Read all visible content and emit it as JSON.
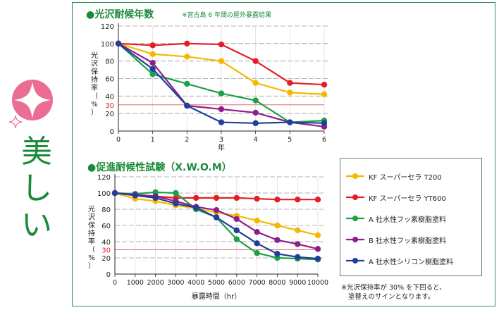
{
  "left": {
    "label": "美しい",
    "icon": "sparkle-icon"
  },
  "colors": {
    "title_green": "#1a8a3a",
    "frame_green": "#2f8f5c",
    "ref_line_red": "#e06a6a",
    "grid": "#9a9a9a"
  },
  "legend": [
    {
      "label": "KF スーパーセラ T200",
      "color": "#f5b800"
    },
    {
      "label": "KF スーパーセラ YT600",
      "color": "#e21f26"
    },
    {
      "label": "A 社水性フッ素樹脂塗料",
      "color": "#1ea049"
    },
    {
      "label": "B 社水性フッ素樹脂塗料",
      "color": "#8e1d8c"
    },
    {
      "label": "A 社水性シリコン樹脂塗料",
      "color": "#1f3f99"
    }
  ],
  "footnote": {
    "line1": "※光沢保持率が 30% を下回ると、",
    "line2": "塗替えのサインとなります。"
  },
  "chart_data": [
    {
      "type": "line",
      "title": "●光沢耐候年数",
      "note": "※宮古島 6 年間の屋外暴露結果",
      "xlabel": "年",
      "ylabel": "光沢保持率（%）",
      "xlim": [
        0,
        6
      ],
      "ylim": [
        0,
        120
      ],
      "x_ticks": [
        "0",
        "1",
        "2",
        "3",
        "4",
        "5",
        "6"
      ],
      "y_ticks": [
        "0",
        "20",
        "40",
        "60",
        "80",
        "100",
        "120"
      ],
      "reference_line": {
        "value": 30,
        "label": "30"
      },
      "grid": true,
      "x": [
        0,
        1,
        2,
        3,
        4,
        5,
        6
      ],
      "series": [
        {
          "name": "KF スーパーセラ T200",
          "color": "#f5b800",
          "values": [
            100,
            88,
            85,
            80,
            55,
            44,
            42
          ]
        },
        {
          "name": "KF スーパーセラ YT600",
          "color": "#e21f26",
          "values": [
            100,
            98,
            100,
            99,
            80,
            55,
            53
          ]
        },
        {
          "name": "A 社水性フッ素樹脂塗料",
          "color": "#1ea049",
          "values": [
            100,
            65,
            54,
            43,
            35,
            10,
            12
          ]
        },
        {
          "name": "B 社水性フッ素樹脂塗料",
          "color": "#8e1d8c",
          "values": [
            100,
            78,
            29,
            25,
            21,
            10,
            5
          ]
        },
        {
          "name": "A 社水性シリコン樹脂塗料",
          "color": "#1f3f99",
          "values": [
            100,
            71,
            29,
            10,
            9,
            10,
            9
          ]
        }
      ]
    },
    {
      "type": "line",
      "title": "●促進耐候性試験（X.W.O.M）",
      "xlabel": "暴露時間（hr）",
      "ylabel": "光沢保持率（%）",
      "xlim": [
        0,
        10000
      ],
      "ylim": [
        0,
        120
      ],
      "x_ticks": [
        "0",
        "1000",
        "2000",
        "3000",
        "4000",
        "5000",
        "6000",
        "7000",
        "8000",
        "9000",
        "10000"
      ],
      "y_ticks": [
        "0",
        "20",
        "40",
        "60",
        "80",
        "100",
        "120"
      ],
      "reference_line": {
        "value": 30,
        "label": "30"
      },
      "grid": true,
      "x": [
        0,
        1000,
        2000,
        3000,
        4000,
        5000,
        6000,
        7000,
        8000,
        9000,
        10000
      ],
      "series": [
        {
          "name": "KF スーパーセラ T200",
          "color": "#f5b800",
          "values": [
            100,
            93,
            90,
            85,
            81,
            76,
            72,
            66,
            60,
            54,
            48
          ]
        },
        {
          "name": "KF スーパーセラ YT600",
          "color": "#e21f26",
          "values": [
            100,
            98,
            96,
            94,
            94,
            94,
            94,
            93,
            92,
            92,
            92
          ]
        },
        {
          "name": "A 社水性フッ素樹脂塗料",
          "color": "#1ea049",
          "values": [
            100,
            99,
            101,
            100,
            80,
            70,
            43,
            26,
            20,
            19,
            18
          ]
        },
        {
          "name": "B 社水性フッ素樹脂塗料",
          "color": "#8e1d8c",
          "values": [
            100,
            98,
            96,
            90,
            83,
            79,
            68,
            52,
            42,
            37,
            31
          ]
        },
        {
          "name": "A 社水性シリコン樹脂塗料",
          "color": "#1f3f99",
          "values": [
            100,
            97,
            94,
            87,
            82,
            70,
            54,
            38,
            25,
            21,
            19
          ]
        }
      ]
    }
  ]
}
